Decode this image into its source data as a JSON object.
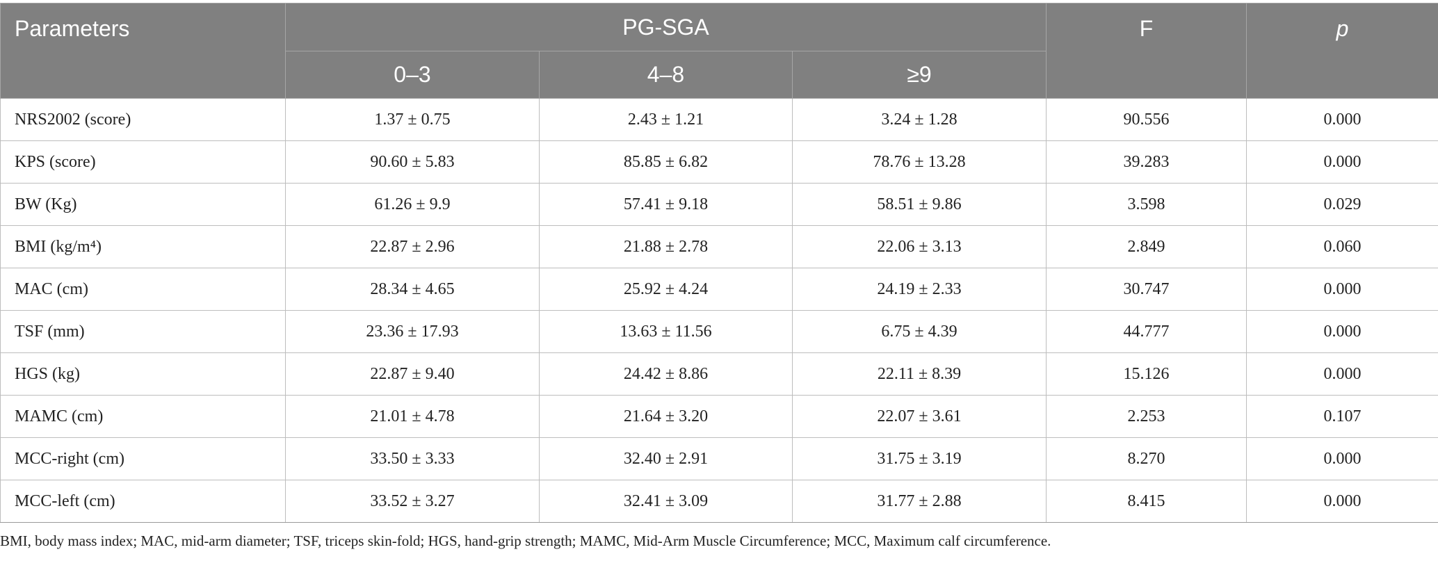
{
  "header": {
    "parameters": "Parameters",
    "group": "PG-SGA",
    "subgroups": [
      "0–3",
      "4–8",
      "≥9"
    ],
    "f": "F",
    "p": "p"
  },
  "rows": [
    {
      "param": "NRS2002 (score)",
      "g1": "1.37 ± 0.75",
      "g2": "2.43 ± 1.21",
      "g3": "3.24 ± 1.28",
      "f": "90.556",
      "p": "0.000"
    },
    {
      "param": "KPS (score)",
      "g1": "90.60 ± 5.83",
      "g2": "85.85 ± 6.82",
      "g3": "78.76 ± 13.28",
      "f": "39.283",
      "p": "0.000"
    },
    {
      "param": "BW (Kg)",
      "g1": "61.26 ± 9.9",
      "g2": "57.41 ± 9.18",
      "g3": "58.51 ± 9.86",
      "f": "3.598",
      "p": "0.029"
    },
    {
      "param": "BMI (kg/m⁴)",
      "g1": "22.87 ± 2.96",
      "g2": "21.88 ± 2.78",
      "g3": "22.06 ± 3.13",
      "f": "2.849",
      "p": "0.060"
    },
    {
      "param": "MAC (cm)",
      "g1": "28.34 ± 4.65",
      "g2": "25.92 ± 4.24",
      "g3": "24.19 ± 2.33",
      "f": "30.747",
      "p": "0.000"
    },
    {
      "param": "TSF (mm)",
      "g1": "23.36 ± 17.93",
      "g2": "13.63 ± 11.56",
      "g3": "6.75 ± 4.39",
      "f": "44.777",
      "p": "0.000"
    },
    {
      "param": "HGS (kg)",
      "g1": "22.87 ± 9.40",
      "g2": "24.42 ± 8.86",
      "g3": "22.11 ± 8.39",
      "f": "15.126",
      "p": "0.000"
    },
    {
      "param": "MAMC (cm)",
      "g1": "21.01 ± 4.78",
      "g2": "21.64 ± 3.20",
      "g3": "22.07 ± 3.61",
      "f": "2.253",
      "p": "0.107"
    },
    {
      "param": "MCC-right (cm)",
      "g1": "33.50 ± 3.33",
      "g2": "32.40 ± 2.91",
      "g3": "31.75 ± 3.19",
      "f": "8.270",
      "p": "0.000"
    },
    {
      "param": "MCC-left (cm)",
      "g1": "33.52 ± 3.27",
      "g2": "32.41 ± 3.09",
      "g3": "31.77 ± 2.88",
      "f": "8.415",
      "p": "0.000"
    }
  ],
  "footnote": "BMI, body mass index; MAC, mid-arm diameter; TSF, triceps skin-fold; HGS, hand-grip strength; MAMC, Mid-Arm Muscle Circumference; MCC, Maximum calf circumference."
}
